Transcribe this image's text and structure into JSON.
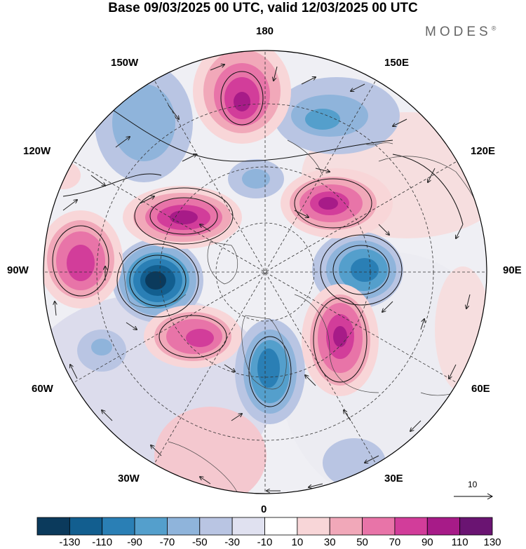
{
  "header": {
    "title": "Base 09/03/2025 00 UTC, valid 12/03/2025 00 UTC",
    "brand": "MODES",
    "brand_mark": "®"
  },
  "map": {
    "projection": "north polar stereographic",
    "longitude_labels": {
      "top": "180",
      "top_left": "150W",
      "top_right": "150E",
      "upper_left": "120W",
      "upper_right": "120E",
      "left": "90W",
      "right": "90E",
      "lower_left": "60W",
      "lower_right": "60E",
      "bottom_left": "30W",
      "bottom_right": "30E",
      "bottom": "0"
    }
  },
  "wind_reference": {
    "label": "10"
  },
  "colorbar": {
    "tick_labels": [
      "-130",
      "-110",
      "-90",
      "-70",
      "-50",
      "-30",
      "-10",
      "10",
      "30",
      "50",
      "70",
      "90",
      "110",
      "130"
    ],
    "colors": [
      "#0b3a5c",
      "#125e8f",
      "#2a7fb5",
      "#549fcc",
      "#8fb4db",
      "#b9c5e3",
      "#e0e1f0",
      "#ffffff",
      "#f8d6d8",
      "#f1a8b9",
      "#e874a8",
      "#d23d9a",
      "#a71b88",
      "#6a1472"
    ]
  }
}
